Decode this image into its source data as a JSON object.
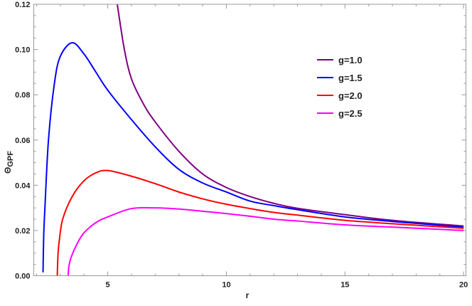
{
  "chart_data": {
    "type": "line",
    "title": "",
    "xlabel": "r",
    "ylabel": "Θ",
    "ylabel_sub": "GPF",
    "xlim": [
      1.88,
      20.1
    ],
    "ylim": [
      0,
      0.12
    ],
    "xticks": [
      5,
      10,
      15,
      20
    ],
    "xtick_labels": [
      "5",
      "10",
      "15",
      "20"
    ],
    "yticks": [
      0,
      0.02,
      0.04,
      0.06,
      0.08,
      0.1,
      0.12
    ],
    "ytick_labels": [
      "0.00",
      "0.02",
      "0.04",
      "0.06",
      "0.08",
      "0.10",
      "0.12"
    ],
    "grid": false,
    "legend_position": "top-right",
    "series": [
      {
        "name": "g=1.0",
        "color": "#800080",
        "x": [
          5.4,
          5.7,
          6,
          6.5,
          7,
          8,
          9,
          10,
          11,
          12,
          13,
          15,
          17,
          20
        ],
        "y": [
          0.12,
          0.1,
          0.087,
          0.076,
          0.068,
          0.055,
          0.045,
          0.039,
          0.035,
          0.032,
          0.0298,
          0.027,
          0.0245,
          0.022
        ]
      },
      {
        "name": "g=1.5",
        "color": "#0000ff",
        "x": [
          2.27,
          2.3,
          2.35,
          2.5,
          2.75,
          3,
          3.5,
          4,
          4.5,
          5,
          6,
          7,
          8,
          9,
          10,
          11,
          12,
          13,
          15,
          17,
          20
        ],
        "y": [
          0.0015,
          0.018,
          0.03,
          0.06,
          0.085,
          0.097,
          0.103,
          0.098,
          0.09,
          0.082,
          0.069,
          0.057,
          0.047,
          0.041,
          0.037,
          0.033,
          0.031,
          0.0292,
          0.026,
          0.024,
          0.0215
        ]
      },
      {
        "name": "g=2.0",
        "color": "#ff0000",
        "x": [
          2.87,
          2.9,
          2.95,
          3.1,
          3.5,
          4,
          4.5,
          5,
          6,
          7,
          8,
          9,
          10,
          11,
          12,
          13,
          15,
          17,
          20
        ],
        "y": [
          0,
          0.009,
          0.015,
          0.025,
          0.035,
          0.042,
          0.0455,
          0.0465,
          0.044,
          0.0407,
          0.037,
          0.034,
          0.0316,
          0.0297,
          0.028,
          0.0268,
          0.0245,
          0.023,
          0.021
        ]
      },
      {
        "name": "g=2.5",
        "color": "#ff00ff",
        "x": [
          3.33,
          3.36,
          3.45,
          3.7,
          4,
          4.5,
          5,
          6,
          7,
          8,
          9,
          10,
          11,
          12,
          13,
          15,
          17,
          20
        ],
        "y": [
          0,
          0.004,
          0.008,
          0.014,
          0.019,
          0.0235,
          0.026,
          0.0297,
          0.03,
          0.0295,
          0.0285,
          0.0275,
          0.0263,
          0.025,
          0.0242,
          0.0225,
          0.0215,
          0.02
        ]
      }
    ]
  }
}
